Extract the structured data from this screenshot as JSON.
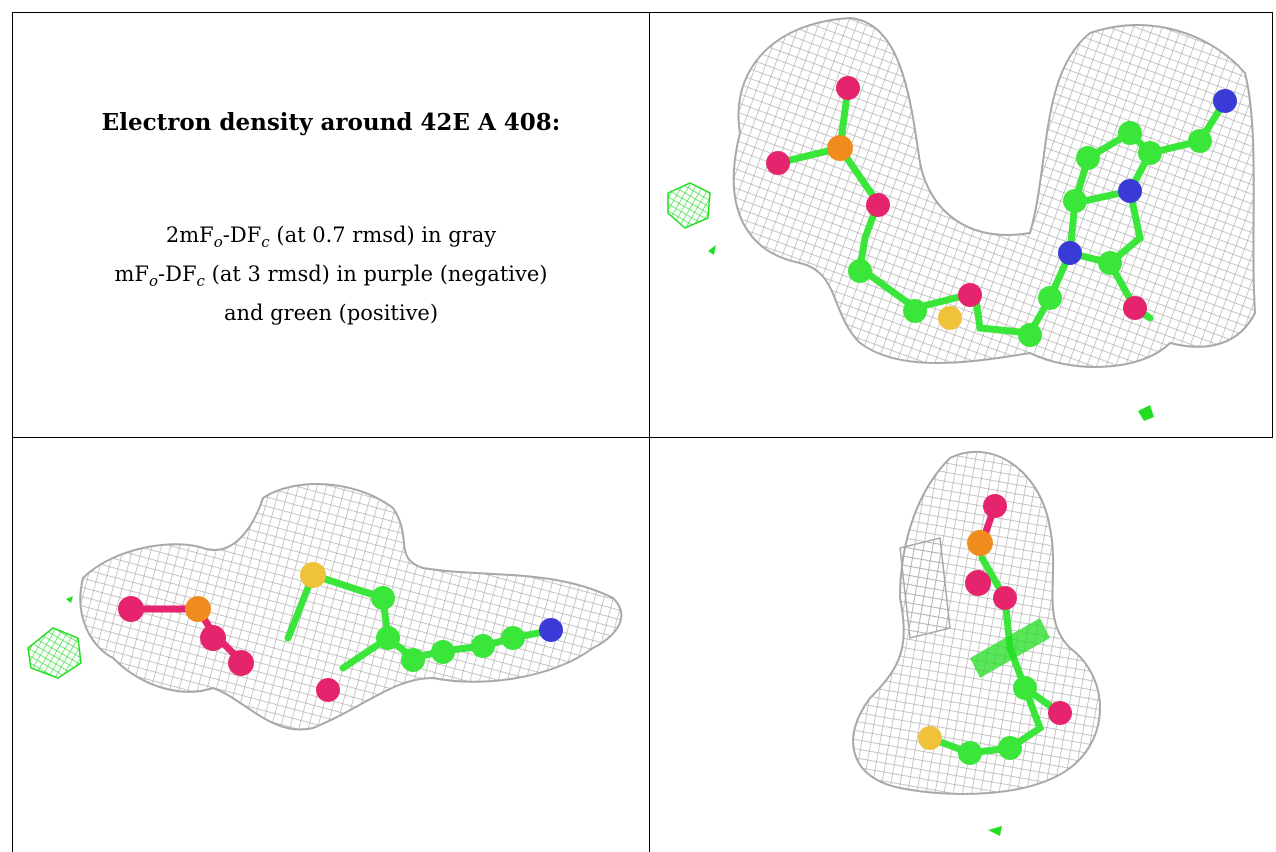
{
  "caption": {
    "title": "Electron density around 42E A 408:",
    "line1": {
      "prefix": "2mF",
      "sub1": "o",
      "mid": "-DF",
      "sub2": "c",
      "suffix": " (at 0.7 rmsd) in gray"
    },
    "line2": {
      "prefix": "mF",
      "sub1": "o",
      "mid": "-DF",
      "sub2": "c",
      "suffix": " (at 3 rmsd) in purple (negative)"
    },
    "line3": "and green (positive)"
  },
  "colors": {
    "mesh": "#a8a8a8",
    "carbon": "#39e639",
    "oxygen": "#e6246e",
    "nitrogen": "#3a3ad6",
    "phosphorus": "#f08c1e",
    "sulfur": "#f0c23a",
    "positive_density": "#22dd22",
    "border": "#000000"
  },
  "panels": [
    {
      "name": "view-1"
    },
    {
      "name": "view-2"
    },
    {
      "name": "view-3"
    }
  ]
}
